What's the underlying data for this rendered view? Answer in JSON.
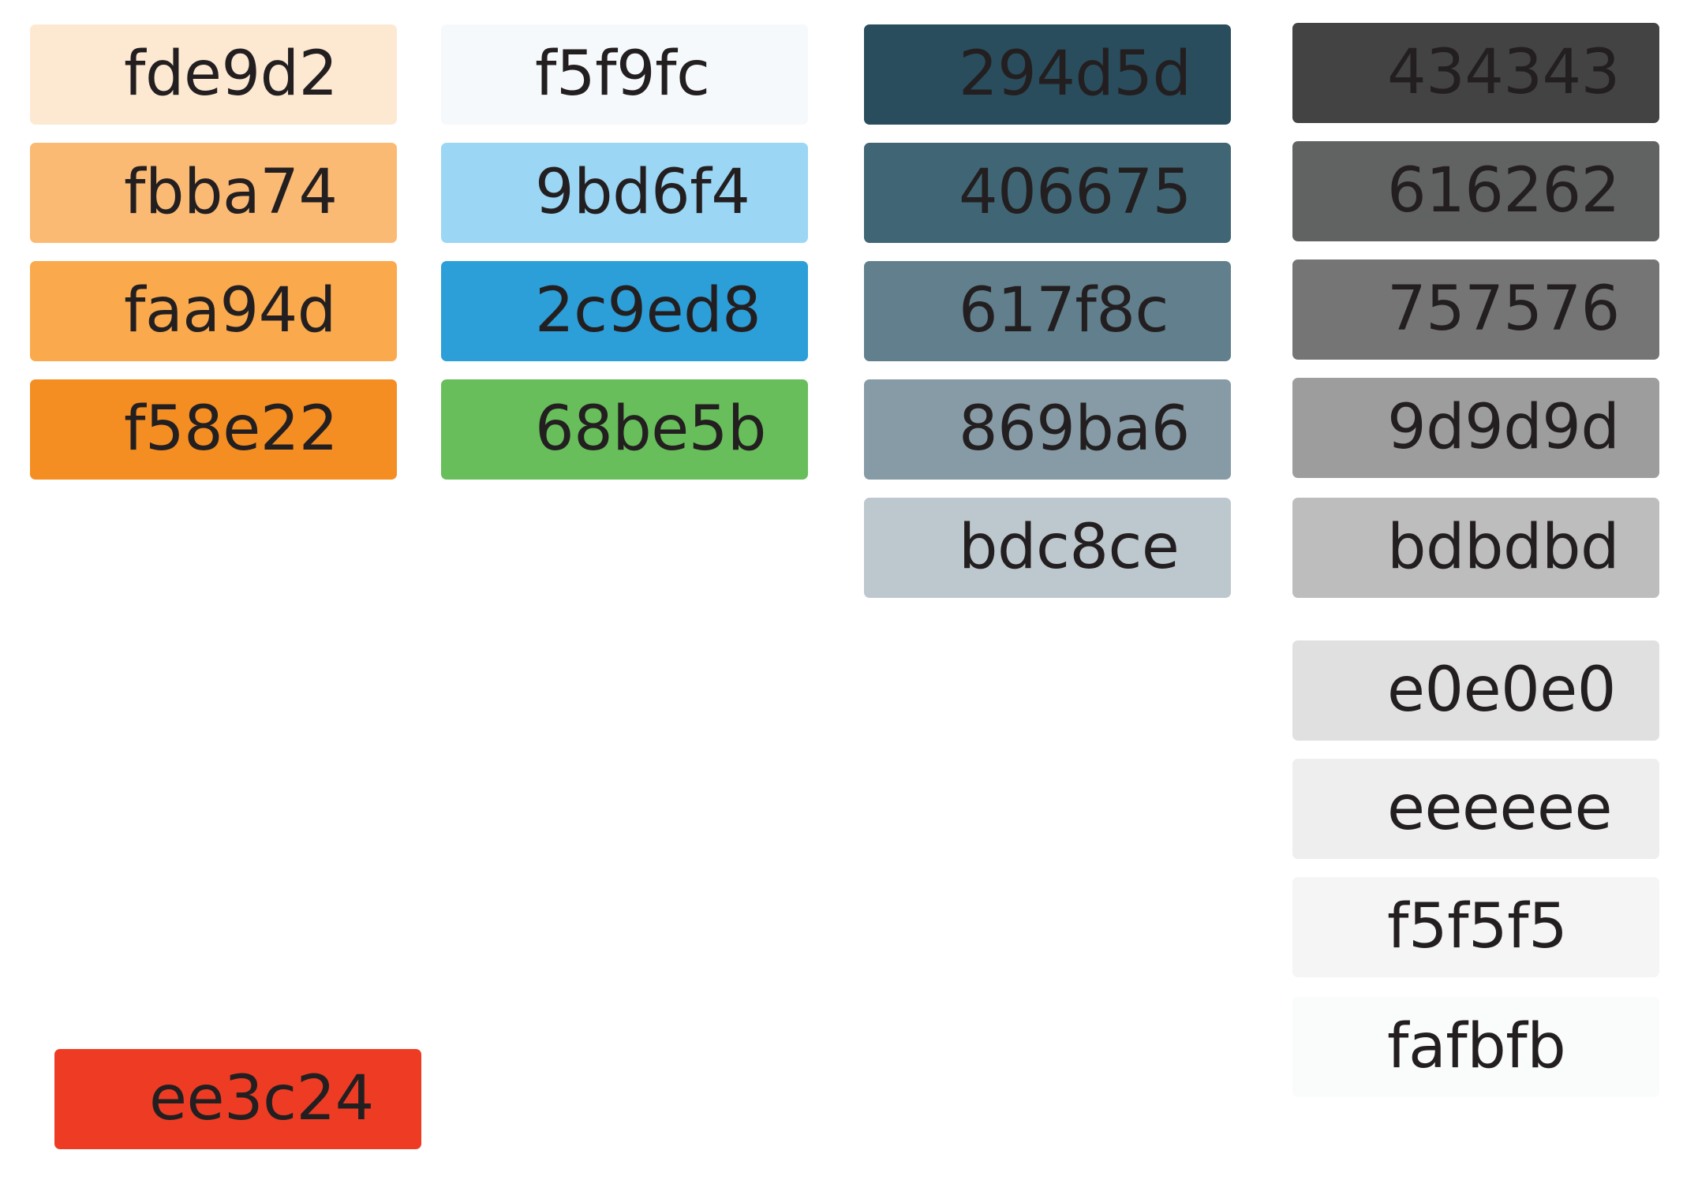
{
  "swatches": {
    "fde9d2": {
      "label": "fde9d2",
      "color": "#fde9d2"
    },
    "fbba74": {
      "label": "fbba74",
      "color": "#fbba74"
    },
    "faa94d": {
      "label": "faa94d",
      "color": "#faa94d"
    },
    "f58e22": {
      "label": "f58e22",
      "color": "#f58e22"
    },
    "ee3c24": {
      "label": "ee3c24",
      "color": "#ee3c24"
    },
    "f5f9fc": {
      "label": "f5f9fc",
      "color": "#f5f9fc"
    },
    "9bd6f4": {
      "label": "9bd6f4",
      "color": "#9bd6f4"
    },
    "2c9ed8": {
      "label": "2c9ed8",
      "color": "#2c9ed8"
    },
    "68be5b": {
      "label": "68be5b",
      "color": "#68be5b"
    },
    "294d5d": {
      "label": "294d5d",
      "color": "#294d5d"
    },
    "406675": {
      "label": "406675",
      "color": "#406675"
    },
    "617f8c": {
      "label": "617f8c",
      "color": "#617f8c"
    },
    "869ba6": {
      "label": "869ba6",
      "color": "#869ba6"
    },
    "bdc8ce": {
      "label": "bdc8ce",
      "color": "#bdc8ce"
    },
    "434343": {
      "label": "434343",
      "color": "#434343"
    },
    "616262": {
      "label": "616262",
      "color": "#616262"
    },
    "757576": {
      "label": "757576",
      "color": "#757576"
    },
    "9d9d9d": {
      "label": "9d9d9d",
      "color": "#9d9d9d"
    },
    "bdbdbd": {
      "label": "bdbdbd",
      "color": "#bdbdbd"
    },
    "e0e0e0": {
      "label": "e0e0e0",
      "color": "#e0e0e0"
    },
    "eeeeee": {
      "label": "eeeeee",
      "color": "#eeeeee"
    },
    "f5f5f5": {
      "label": "f5f5f5",
      "color": "#f5f5f5"
    },
    "fafbfb": {
      "label": "fafbfb",
      "color": "#fafbfb"
    }
  }
}
